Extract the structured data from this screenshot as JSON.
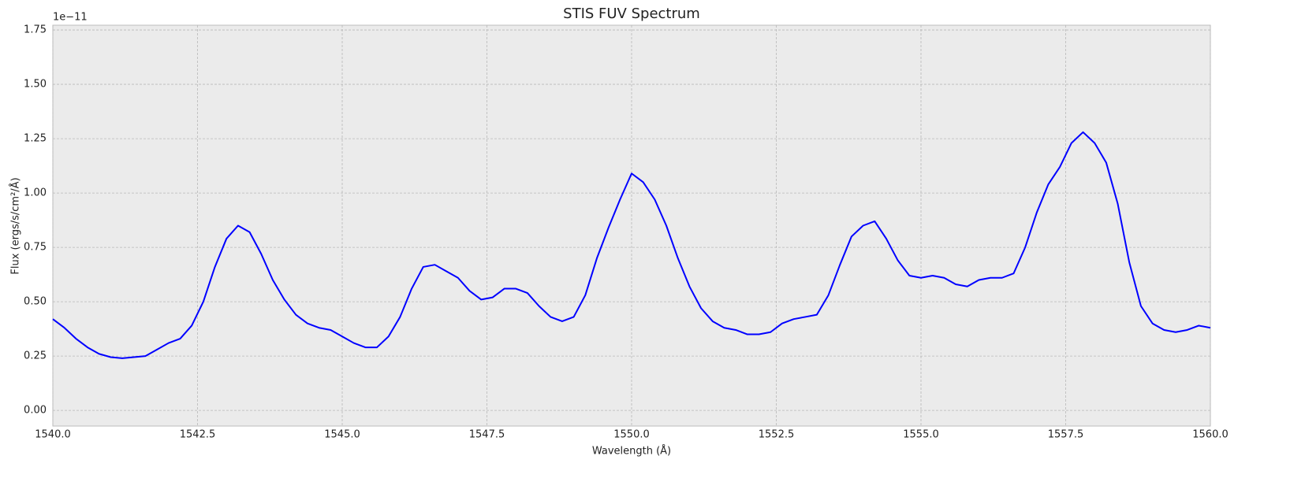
{
  "chart_data": {
    "type": "line",
    "title": "STIS FUV Spectrum",
    "x_label": "Wavelength (Å)",
    "y_label": "Flux (ergs/s/cm²/Å)",
    "y_offset_label": "1e−11",
    "x": [
      1540.0,
      1540.2,
      1540.4,
      1540.6,
      1540.8,
      1541.0,
      1541.2,
      1541.4,
      1541.6,
      1541.8,
      1542.0,
      1542.2,
      1542.4,
      1542.6,
      1542.8,
      1543.0,
      1543.2,
      1543.4,
      1543.6,
      1543.8,
      1544.0,
      1544.2,
      1544.4,
      1544.6,
      1544.8,
      1545.0,
      1545.2,
      1545.4,
      1545.6,
      1545.8,
      1546.0,
      1546.2,
      1546.4,
      1546.6,
      1546.8,
      1547.0,
      1547.2,
      1547.4,
      1547.6,
      1547.8,
      1548.0,
      1548.2,
      1548.4,
      1548.6,
      1548.8,
      1549.0,
      1549.2,
      1549.4,
      1549.6,
      1549.8,
      1550.0,
      1550.2,
      1550.4,
      1550.6,
      1550.8,
      1551.0,
      1551.2,
      1551.4,
      1551.6,
      1551.8,
      1552.0,
      1552.2,
      1552.4,
      1552.6,
      1552.8,
      1553.0,
      1553.2,
      1553.4,
      1553.6,
      1553.8,
      1554.0,
      1554.2,
      1554.4,
      1554.6,
      1554.8,
      1555.0,
      1555.2,
      1555.4,
      1555.6,
      1555.8,
      1556.0,
      1556.2,
      1556.4,
      1556.6,
      1556.8,
      1557.0,
      1557.2,
      1557.4,
      1557.6,
      1557.8,
      1558.0,
      1558.2,
      1558.4,
      1558.6,
      1558.8,
      1559.0,
      1559.2,
      1559.4,
      1559.6,
      1559.8,
      1560.0
    ],
    "series": [
      {
        "name": "Flux",
        "color": "#0000ff",
        "values": [
          0.42,
          0.38,
          0.33,
          0.29,
          0.26,
          0.245,
          0.24,
          0.245,
          0.25,
          0.28,
          0.31,
          0.33,
          0.39,
          0.5,
          0.66,
          0.79,
          0.85,
          0.82,
          0.72,
          0.6,
          0.51,
          0.44,
          0.4,
          0.38,
          0.37,
          0.34,
          0.31,
          0.29,
          0.29,
          0.34,
          0.43,
          0.56,
          0.66,
          0.67,
          0.64,
          0.61,
          0.55,
          0.51,
          0.52,
          0.56,
          0.56,
          0.54,
          0.48,
          0.43,
          0.41,
          0.43,
          0.53,
          0.7,
          0.84,
          0.97,
          1.09,
          1.05,
          0.97,
          0.85,
          0.7,
          0.57,
          0.47,
          0.41,
          0.38,
          0.37,
          0.35,
          0.35,
          0.36,
          0.4,
          0.42,
          0.43,
          0.44,
          0.53,
          0.67,
          0.8,
          0.85,
          0.87,
          0.79,
          0.69,
          0.62,
          0.61,
          0.62,
          0.61,
          0.58,
          0.57,
          0.6,
          0.61,
          0.61,
          0.63,
          0.75,
          0.91,
          1.04,
          1.12,
          1.23,
          1.28,
          1.23,
          1.14,
          0.95,
          0.68,
          0.48,
          0.4,
          0.37,
          0.36,
          0.37,
          0.39,
          0.38
        ]
      }
    ],
    "xlim": [
      1540,
      1560
    ],
    "xticks": [
      {
        "value": 1540,
        "label": "1540.0"
      },
      1542.5,
      {
        "value": 1545,
        "label": "1545.0"
      },
      1547.5,
      {
        "value": 1550,
        "label": "1550.0"
      },
      1552.5,
      {
        "value": 1555,
        "label": "1555.0"
      },
      1557.5,
      {
        "value": 1560,
        "label": "1560.0"
      }
    ],
    "ylim": [
      -0.072,
      1.772
    ],
    "yticks": [
      {
        "value": 0,
        "label": "0.00"
      },
      0.25,
      {
        "value": 0.5,
        "label": "0.50"
      },
      0.75,
      {
        "value": 1,
        "label": "1.00"
      },
      1.25,
      {
        "value": 1.5,
        "label": "1.50"
      },
      1.75
    ],
    "grid": true,
    "background": "#ebebeb"
  }
}
